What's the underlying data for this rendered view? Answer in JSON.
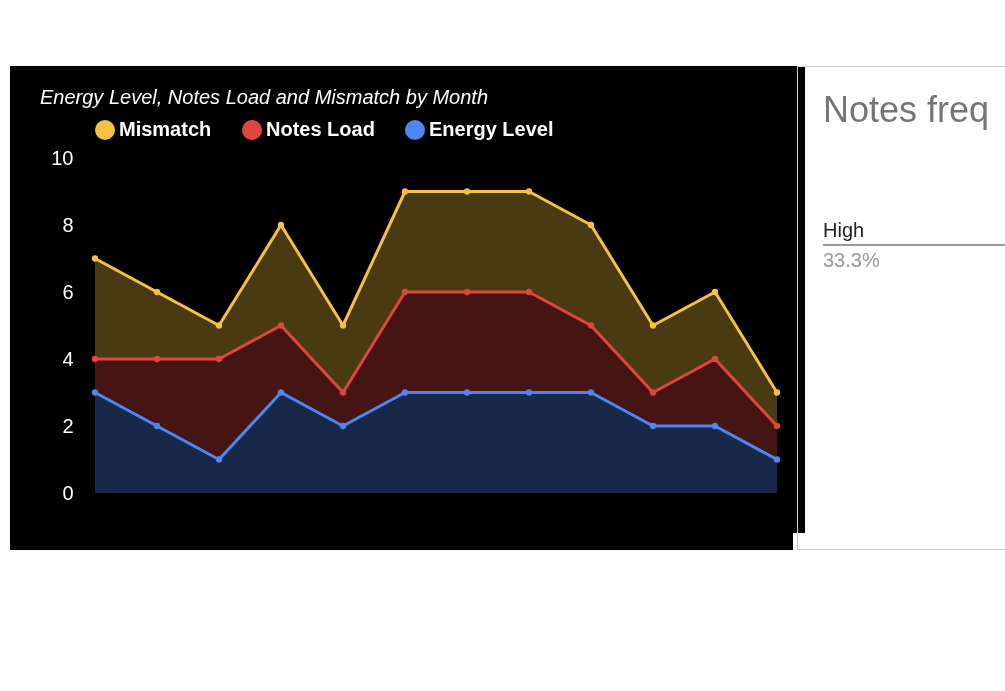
{
  "chart_data": [
    {
      "type": "area",
      "title": "Energy Level, Notes Load and Mismatch by Month",
      "stacked": true,
      "legend": "top",
      "marker": "circle",
      "grid": false,
      "tick_labels": "y",
      "categories": [
        null,
        null,
        null,
        null,
        null,
        null,
        null,
        null,
        null,
        null,
        null,
        null
      ],
      "ylim": [
        0,
        10
      ],
      "yticks": [
        0,
        2,
        4,
        6,
        8,
        10
      ],
      "series": [
        {
          "name": "Energy Level",
          "color": "#4f86f0",
          "values": [
            3,
            2,
            1,
            3,
            2,
            3,
            3,
            3,
            3,
            2,
            2,
            1
          ]
        },
        {
          "name": "Notes Load",
          "color": "#e0473c",
          "values": [
            1,
            2,
            3,
            2,
            1,
            3,
            3,
            3,
            2,
            1,
            2,
            1
          ]
        },
        {
          "name": "Mismatch",
          "color": "#f6c142",
          "values": [
            3,
            2,
            1,
            3,
            2,
            3,
            3,
            3,
            3,
            2,
            2,
            1
          ]
        }
      ]
    },
    {
      "type": "other",
      "title": "Notes freq",
      "annotations": [
        "High",
        "33.3%"
      ]
    }
  ]
}
